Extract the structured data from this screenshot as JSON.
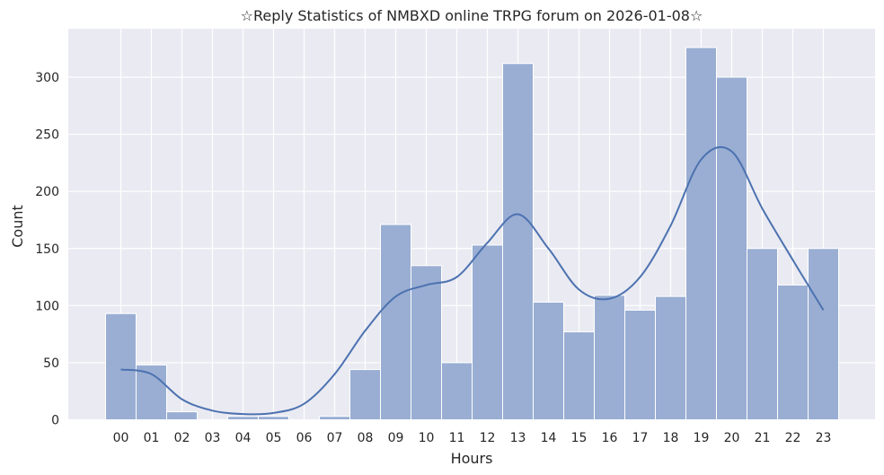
{
  "chart_data": {
    "type": "bar",
    "title": "☆Reply Statistics of NMBXD online TRPG forum on 2026-01-08☆",
    "xlabel": "Hours",
    "ylabel": "Count",
    "categories": [
      "00",
      "01",
      "02",
      "03",
      "04",
      "05",
      "06",
      "07",
      "08",
      "09",
      "10",
      "11",
      "12",
      "13",
      "14",
      "15",
      "16",
      "17",
      "18",
      "19",
      "20",
      "21",
      "22",
      "23"
    ],
    "values": [
      93,
      48,
      7,
      0,
      3,
      3,
      0,
      3,
      44,
      171,
      135,
      50,
      153,
      312,
      103,
      77,
      109,
      96,
      108,
      326,
      300,
      150,
      118,
      150
    ],
    "yticks": [
      0,
      50,
      100,
      150,
      200,
      250,
      300
    ],
    "ylim": [
      0,
      340
    ],
    "grid": true,
    "kde": [
      {
        "x": 0,
        "y": 44
      },
      {
        "x": 1,
        "y": 40
      },
      {
        "x": 2,
        "y": 18
      },
      {
        "x": 3,
        "y": 8
      },
      {
        "x": 4,
        "y": 5
      },
      {
        "x": 5,
        "y": 6
      },
      {
        "x": 6,
        "y": 14
      },
      {
        "x": 7,
        "y": 40
      },
      {
        "x": 8,
        "y": 78
      },
      {
        "x": 9,
        "y": 108
      },
      {
        "x": 10,
        "y": 118
      },
      {
        "x": 11,
        "y": 125
      },
      {
        "x": 12,
        "y": 155
      },
      {
        "x": 13,
        "y": 180
      },
      {
        "x": 14,
        "y": 150
      },
      {
        "x": 15,
        "y": 114
      },
      {
        "x": 16,
        "y": 106
      },
      {
        "x": 17,
        "y": 125
      },
      {
        "x": 18,
        "y": 170
      },
      {
        "x": 19,
        "y": 228
      },
      {
        "x": 20,
        "y": 235
      },
      {
        "x": 21,
        "y": 185
      },
      {
        "x": 22,
        "y": 140
      },
      {
        "x": 23,
        "y": 96
      }
    ],
    "colors": {
      "bar_fill": "#9aaed3",
      "bar_stroke": "#ffffff",
      "kde_line": "#4c72b0",
      "plot_bg": "#eaeaf2",
      "grid": "#ffffff"
    }
  }
}
